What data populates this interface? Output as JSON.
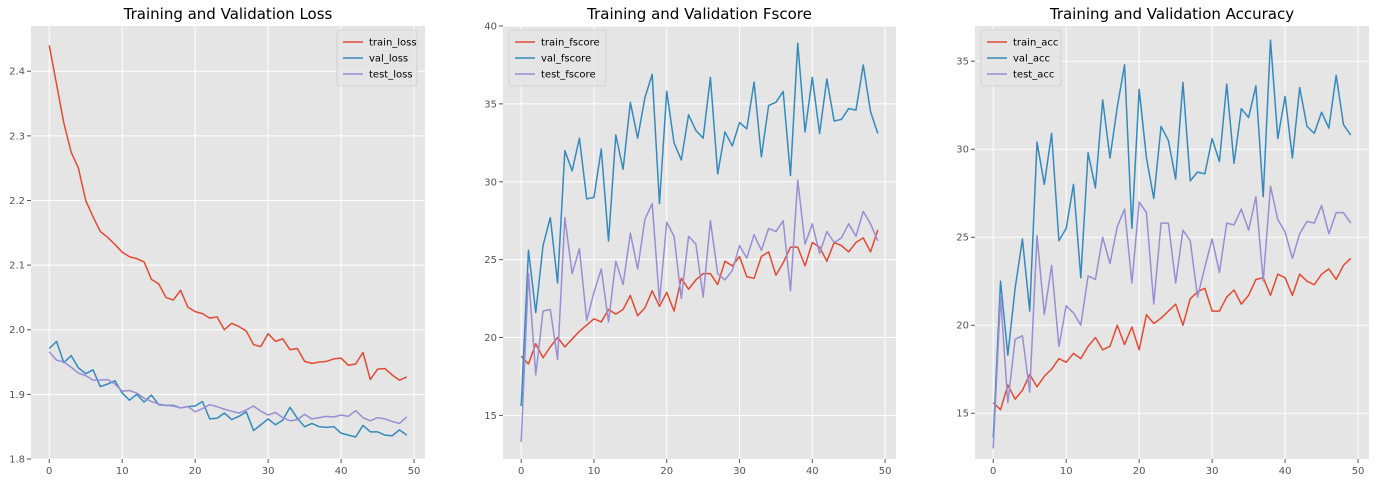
{
  "chart_data": [
    {
      "type": "line",
      "title": "Training and Validation Loss",
      "xlabel": "",
      "ylabel": "",
      "xlim": [
        -2.5,
        51.5
      ],
      "ylim": [
        1.8,
        2.47
      ],
      "xticks": [
        0,
        10,
        20,
        30,
        40,
        50
      ],
      "yticks": [
        1.8,
        1.9,
        2.0,
        2.1,
        2.2,
        2.3,
        2.4
      ],
      "ytick_decimals": 1,
      "grid": true,
      "legend": "top-right",
      "series": [
        {
          "name": "train_loss",
          "color": "#E24A33",
          "values": [
            2.44,
            2.38,
            2.32,
            2.275,
            2.25,
            2.2,
            2.175,
            2.152,
            2.143,
            2.132,
            2.12,
            2.113,
            2.11,
            2.105,
            2.078,
            2.071,
            2.05,
            2.046,
            2.061,
            2.035,
            2.028,
            2.025,
            2.018,
            2.02,
            2.0,
            2.01,
            2.005,
            1.998,
            1.977,
            1.974,
            1.994,
            1.982,
            1.986,
            1.969,
            1.971,
            1.951,
            1.948,
            1.95,
            1.951,
            1.955,
            1.956,
            1.945,
            1.947,
            1.965,
            1.923,
            1.939,
            1.94,
            1.93,
            1.922,
            1.927
          ]
        },
        {
          "name": "val_loss",
          "color": "#348ABD",
          "values": [
            1.971,
            1.982,
            1.949,
            1.96,
            1.941,
            1.932,
            1.938,
            1.912,
            1.916,
            1.921,
            1.902,
            1.891,
            1.9,
            1.888,
            1.899,
            1.884,
            1.883,
            1.883,
            1.879,
            1.881,
            1.882,
            1.889,
            1.862,
            1.863,
            1.871,
            1.861,
            1.866,
            1.873,
            1.844,
            1.853,
            1.862,
            1.853,
            1.86,
            1.88,
            1.863,
            1.85,
            1.855,
            1.85,
            1.849,
            1.85,
            1.84,
            1.837,
            1.834,
            1.852,
            1.842,
            1.842,
            1.837,
            1.836,
            1.845,
            1.837
          ]
        },
        {
          "name": "test_loss",
          "color": "#988ED5",
          "values": [
            1.966,
            1.953,
            1.95,
            1.942,
            1.933,
            1.929,
            1.922,
            1.922,
            1.923,
            1.916,
            1.905,
            1.906,
            1.902,
            1.894,
            1.889,
            1.885,
            1.883,
            1.882,
            1.879,
            1.881,
            1.873,
            1.878,
            1.884,
            1.881,
            1.877,
            1.874,
            1.871,
            1.876,
            1.882,
            1.874,
            1.868,
            1.872,
            1.864,
            1.859,
            1.861,
            1.869,
            1.862,
            1.864,
            1.866,
            1.865,
            1.868,
            1.866,
            1.875,
            1.864,
            1.859,
            1.864,
            1.862,
            1.858,
            1.855,
            1.865
          ]
        }
      ]
    },
    {
      "type": "line",
      "title": "Training and Validation Fscore",
      "xlabel": "",
      "ylabel": "",
      "xlim": [
        -2.5,
        51.5
      ],
      "ylim": [
        12.2,
        40.0
      ],
      "xticks": [
        0,
        10,
        20,
        30,
        40,
        50
      ],
      "yticks": [
        15,
        20,
        25,
        30,
        35,
        40
      ],
      "ytick_decimals": 0,
      "grid": true,
      "legend": "top-left",
      "series": [
        {
          "name": "train_fscore",
          "color": "#E24A33",
          "values": [
            18.8,
            18.3,
            19.6,
            18.7,
            19.4,
            20.0,
            19.4,
            19.9,
            20.4,
            20.8,
            21.2,
            21.0,
            21.8,
            21.5,
            21.8,
            22.7,
            21.4,
            21.9,
            23.0,
            22.0,
            22.9,
            21.7,
            23.8,
            23.1,
            23.7,
            24.1,
            24.1,
            23.4,
            24.9,
            24.6,
            25.2,
            23.9,
            23.8,
            25.2,
            25.5,
            24.0,
            24.8,
            25.8,
            25.8,
            24.6,
            26.1,
            25.8,
            24.9,
            26.1,
            25.9,
            25.5,
            26.1,
            26.4,
            25.5,
            26.9
          ]
        },
        {
          "name": "val_fscore",
          "color": "#348ABD",
          "values": [
            15.6,
            25.6,
            21.6,
            25.9,
            27.7,
            23.5,
            32.0,
            30.7,
            32.8,
            28.9,
            29.0,
            32.1,
            26.2,
            33.0,
            30.8,
            35.1,
            32.8,
            35.4,
            36.9,
            28.6,
            35.8,
            32.5,
            31.4,
            34.3,
            33.3,
            32.8,
            36.7,
            30.5,
            33.2,
            32.3,
            33.8,
            33.4,
            36.4,
            31.6,
            34.9,
            35.1,
            35.8,
            30.4,
            38.9,
            33.2,
            36.7,
            33.1,
            36.6,
            33.9,
            34.0,
            34.7,
            34.6,
            37.5,
            34.5,
            33.1
          ]
        },
        {
          "name": "test_fscore",
          "color": "#988ED5",
          "values": [
            13.3,
            24.1,
            17.6,
            21.7,
            21.8,
            18.6,
            27.7,
            24.1,
            25.7,
            21.1,
            22.9,
            24.4,
            21.0,
            24.9,
            23.4,
            26.7,
            24.4,
            27.6,
            28.6,
            22.3,
            27.4,
            26.5,
            22.5,
            26.5,
            26.0,
            22.6,
            27.5,
            24.1,
            23.7,
            24.3,
            25.9,
            25.1,
            26.6,
            25.6,
            27.0,
            26.8,
            27.5,
            23.0,
            30.1,
            26.0,
            27.3,
            25.4,
            26.8,
            26.1,
            26.4,
            27.3,
            26.5,
            28.1,
            27.3,
            26.2
          ]
        }
      ]
    },
    {
      "type": "line",
      "title": "Training and Validation Accuracy",
      "xlabel": "",
      "ylabel": "",
      "xlim": [
        -2.5,
        51.5
      ],
      "ylim": [
        12.4,
        37.0
      ],
      "xticks": [
        0,
        10,
        20,
        30,
        40,
        50
      ],
      "yticks": [
        15,
        20,
        25,
        30,
        35
      ],
      "ytick_decimals": 0,
      "grid": true,
      "legend": "top-left",
      "series": [
        {
          "name": "train_acc",
          "color": "#E24A33",
          "values": [
            15.6,
            15.2,
            16.6,
            15.8,
            16.3,
            17.2,
            16.5,
            17.1,
            17.5,
            18.1,
            17.9,
            18.4,
            18.1,
            18.8,
            19.3,
            18.6,
            18.8,
            20.0,
            18.9,
            19.9,
            18.6,
            20.6,
            20.1,
            20.4,
            20.8,
            21.2,
            20.0,
            21.5,
            21.9,
            22.1,
            20.8,
            20.8,
            21.6,
            22.0,
            21.2,
            21.7,
            22.6,
            22.7,
            21.7,
            22.9,
            22.7,
            21.7,
            22.9,
            22.5,
            22.3,
            22.9,
            23.2,
            22.6,
            23.4,
            23.8
          ]
        },
        {
          "name": "val_acc",
          "color": "#348ABD",
          "values": [
            13.6,
            22.5,
            18.3,
            22.1,
            24.9,
            20.8,
            30.4,
            28.0,
            30.9,
            24.8,
            25.5,
            28.0,
            22.7,
            29.8,
            27.8,
            32.8,
            29.5,
            32.4,
            34.8,
            25.5,
            33.4,
            29.5,
            27.2,
            31.3,
            30.5,
            28.3,
            33.8,
            28.2,
            28.7,
            28.6,
            30.6,
            29.3,
            33.7,
            29.2,
            32.3,
            31.8,
            33.6,
            27.3,
            36.2,
            30.6,
            33.0,
            29.5,
            33.5,
            31.3,
            30.9,
            32.1,
            31.2,
            34.2,
            31.4,
            30.8
          ]
        },
        {
          "name": "test_acc",
          "color": "#988ED5",
          "values": [
            13.0,
            21.6,
            15.6,
            19.2,
            19.4,
            16.2,
            25.1,
            20.6,
            23.4,
            18.8,
            21.1,
            20.7,
            20.0,
            22.8,
            22.6,
            25.0,
            23.5,
            25.6,
            26.6,
            22.4,
            27.0,
            26.4,
            21.2,
            25.8,
            25.8,
            22.4,
            25.4,
            24.8,
            21.6,
            23.3,
            24.9,
            23.0,
            25.8,
            25.7,
            26.6,
            25.4,
            27.3,
            22.5,
            27.9,
            26.0,
            25.3,
            23.8,
            25.2,
            25.9,
            25.8,
            26.8,
            25.2,
            26.4,
            26.4,
            25.8
          ]
        }
      ]
    }
  ]
}
